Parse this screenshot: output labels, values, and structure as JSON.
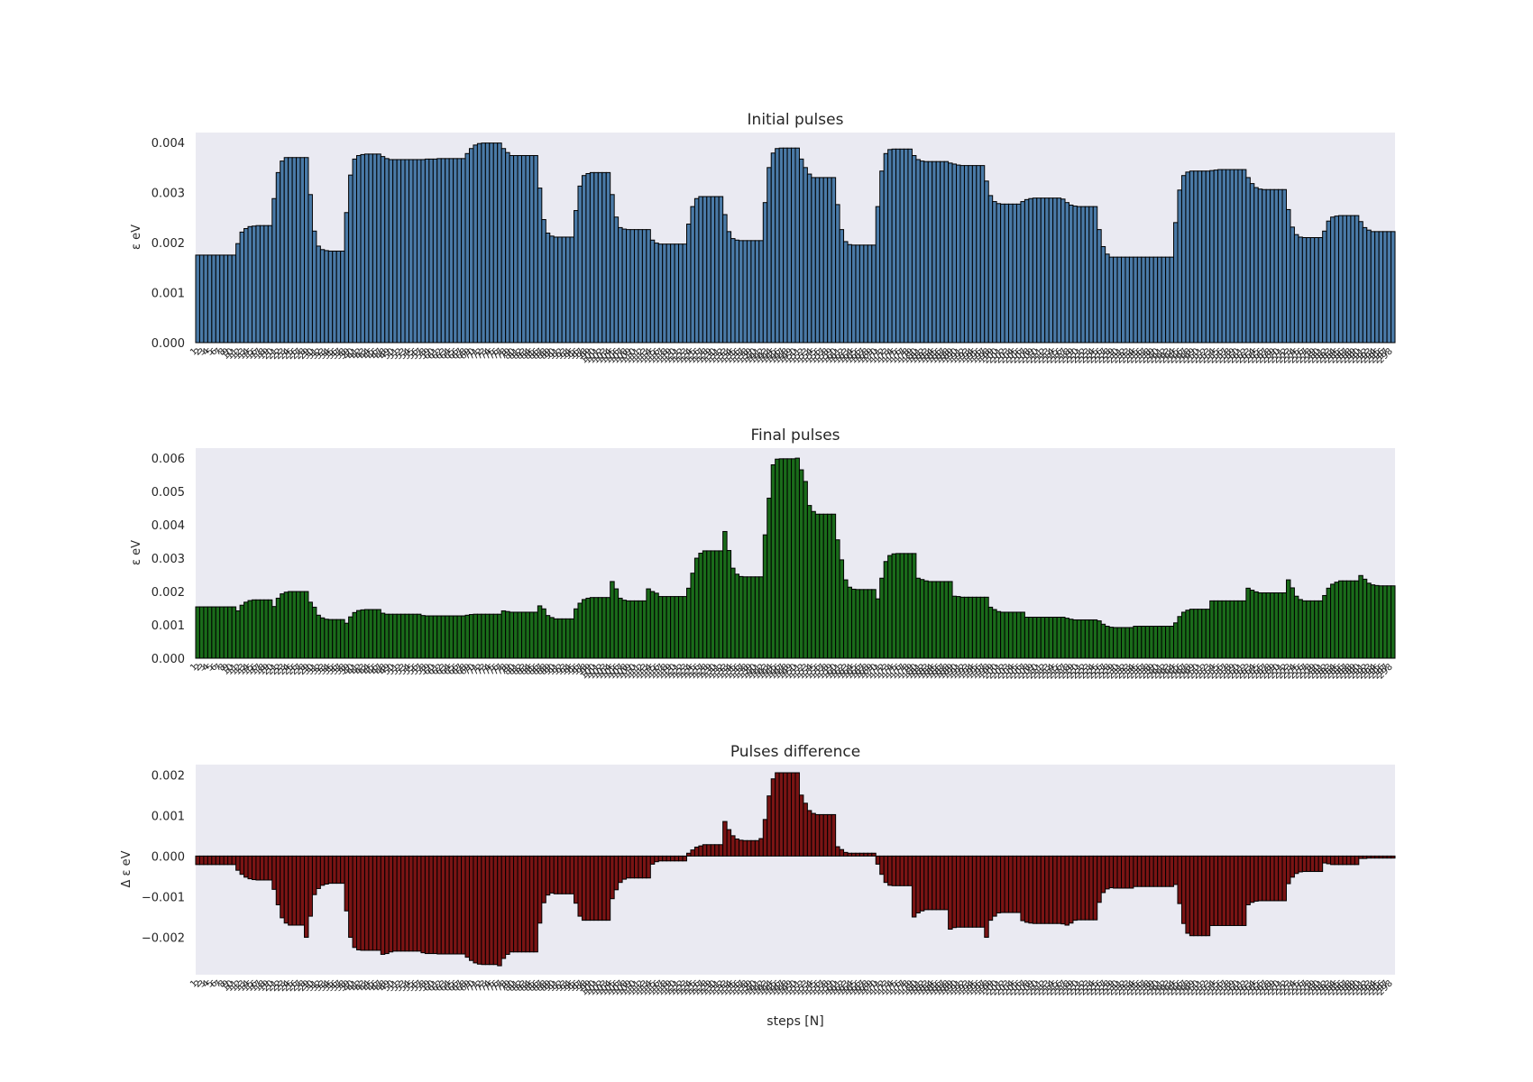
{
  "chart_data": [
    {
      "type": "bar",
      "title": "Initial pulses",
      "ylabel": "ε eV",
      "xlabel": "",
      "color": "#4a7aa7",
      "ylim": [
        0,
        0.0042
      ],
      "yticks": [
        "0.000",
        "0.001",
        "0.002",
        "0.003",
        "0.004"
      ],
      "ytick_values": [
        0,
        0.001,
        0.002,
        0.003,
        0.004
      ],
      "grid": false,
      "x_start": 1,
      "values": [
        0.00175,
        0.00175,
        0.00175,
        0.00175,
        0.00175,
        0.00175,
        0.00175,
        0.00175,
        0.00175,
        0.00175,
        0.00198,
        0.00221,
        0.00228,
        0.00232,
        0.00233,
        0.00234,
        0.00234,
        0.00234,
        0.00234,
        0.00288,
        0.0034,
        0.00363,
        0.0037,
        0.0037,
        0.0037,
        0.0037,
        0.0037,
        0.0037,
        0.00296,
        0.00223,
        0.00193,
        0.00186,
        0.00184,
        0.00183,
        0.00183,
        0.00183,
        0.00183,
        0.0026,
        0.00335,
        0.00367,
        0.00374,
        0.00376,
        0.00377,
        0.00377,
        0.00377,
        0.00377,
        0.00372,
        0.00368,
        0.00366,
        0.00366,
        0.00366,
        0.00366,
        0.00366,
        0.00366,
        0.00366,
        0.00366,
        0.00366,
        0.00367,
        0.00367,
        0.00367,
        0.00368,
        0.00368,
        0.00368,
        0.00368,
        0.00368,
        0.00368,
        0.00368,
        0.00378,
        0.00388,
        0.00395,
        0.00398,
        0.00399,
        0.00399,
        0.00399,
        0.00399,
        0.00399,
        0.00388,
        0.0038,
        0.00374,
        0.00374,
        0.00374,
        0.00374,
        0.00374,
        0.00374,
        0.00374,
        0.00309,
        0.00246,
        0.00219,
        0.00213,
        0.00211,
        0.00211,
        0.00211,
        0.00211,
        0.00211,
        0.00264,
        0.00313,
        0.00334,
        0.00338,
        0.0034,
        0.0034,
        0.0034,
        0.0034,
        0.0034,
        0.00296,
        0.00251,
        0.0023,
        0.00227,
        0.00226,
        0.00226,
        0.00226,
        0.00226,
        0.00226,
        0.00226,
        0.00205,
        0.00199,
        0.00197,
        0.00197,
        0.00197,
        0.00197,
        0.00197,
        0.00197,
        0.00197,
        0.00237,
        0.00272,
        0.00288,
        0.00292,
        0.00292,
        0.00292,
        0.00292,
        0.00292,
        0.00292,
        0.00256,
        0.00222,
        0.00208,
        0.00205,
        0.00204,
        0.00204,
        0.00204,
        0.00204,
        0.00204,
        0.00204,
        0.0028,
        0.0035,
        0.00379,
        0.00388,
        0.00389,
        0.00389,
        0.00389,
        0.00389,
        0.00389,
        0.00367,
        0.0035,
        0.00337,
        0.0033,
        0.0033,
        0.0033,
        0.0033,
        0.0033,
        0.0033,
        0.00276,
        0.00226,
        0.00202,
        0.00196,
        0.00195,
        0.00195,
        0.00195,
        0.00195,
        0.00195,
        0.00195,
        0.00272,
        0.00343,
        0.00378,
        0.00386,
        0.00387,
        0.00387,
        0.00387,
        0.00387,
        0.00387,
        0.00374,
        0.00366,
        0.00363,
        0.00362,
        0.00362,
        0.00362,
        0.00362,
        0.00362,
        0.00362,
        0.00359,
        0.00357,
        0.00355,
        0.00354,
        0.00354,
        0.00354,
        0.00354,
        0.00354,
        0.00354,
        0.00323,
        0.00294,
        0.00282,
        0.00278,
        0.00277,
        0.00277,
        0.00277,
        0.00277,
        0.00277,
        0.00282,
        0.00286,
        0.00288,
        0.00289,
        0.00289,
        0.00289,
        0.00289,
        0.00289,
        0.00289,
        0.00289,
        0.00287,
        0.0028,
        0.00275,
        0.00273,
        0.00272,
        0.00272,
        0.00272,
        0.00272,
        0.00272,
        0.00226,
        0.00192,
        0.00177,
        0.00171,
        0.00171,
        0.00171,
        0.00171,
        0.00171,
        0.00171,
        0.00171,
        0.00171,
        0.00171,
        0.00171,
        0.00171,
        0.00171,
        0.00171,
        0.00171,
        0.00171,
        0.00171,
        0.0024,
        0.00305,
        0.00334,
        0.00341,
        0.00343,
        0.00343,
        0.00343,
        0.00343,
        0.00343,
        0.00344,
        0.00345,
        0.00346,
        0.00346,
        0.00346,
        0.00346,
        0.00346,
        0.00346,
        0.00346,
        0.0033,
        0.00318,
        0.0031,
        0.00307,
        0.00306,
        0.00306,
        0.00306,
        0.00306,
        0.00306,
        0.00306,
        0.00266,
        0.00231,
        0.00216,
        0.00211,
        0.0021,
        0.0021,
        0.0021,
        0.0021,
        0.0021,
        0.00223,
        0.00243,
        0.00251,
        0.00253,
        0.00254,
        0.00254,
        0.00254,
        0.00254,
        0.00254,
        0.00242,
        0.0023,
        0.00225,
        0.00222,
        0.00222,
        0.00222,
        0.00222,
        0.00222,
        0.00222
      ]
    },
    {
      "type": "bar",
      "title": "Final pulses",
      "ylabel": "ε eV",
      "xlabel": "",
      "color": "#1a6b1a",
      "ylim": [
        0,
        0.0063
      ],
      "yticks": [
        "0.000",
        "0.001",
        "0.002",
        "0.003",
        "0.004",
        "0.005",
        "0.006"
      ],
      "ytick_values": [
        0,
        0.001,
        0.002,
        0.003,
        0.004,
        0.005,
        0.006
      ],
      "grid": false,
      "x_start": 1,
      "values": [
        0.00154,
        0.00154,
        0.00154,
        0.00154,
        0.00154,
        0.00154,
        0.00154,
        0.00154,
        0.00154,
        0.00154,
        0.00142,
        0.00159,
        0.00168,
        0.00173,
        0.00175,
        0.00175,
        0.00175,
        0.00175,
        0.00175,
        0.00155,
        0.0018,
        0.00193,
        0.00198,
        0.002,
        0.002,
        0.002,
        0.002,
        0.002,
        0.00168,
        0.00153,
        0.00129,
        0.00121,
        0.00117,
        0.00116,
        0.00116,
        0.00116,
        0.00116,
        0.00105,
        0.00124,
        0.00137,
        0.00143,
        0.00145,
        0.00146,
        0.00146,
        0.00146,
        0.00146,
        0.00135,
        0.00132,
        0.00132,
        0.00132,
        0.00132,
        0.00132,
        0.00132,
        0.00132,
        0.00132,
        0.00132,
        0.00128,
        0.00127,
        0.00127,
        0.00127,
        0.00127,
        0.00127,
        0.00127,
        0.00127,
        0.00127,
        0.00127,
        0.00127,
        0.00129,
        0.00131,
        0.00132,
        0.00132,
        0.00132,
        0.00132,
        0.00132,
        0.00132,
        0.00132,
        0.00142,
        0.0014,
        0.00138,
        0.00138,
        0.00138,
        0.00138,
        0.00138,
        0.00138,
        0.00138,
        0.00157,
        0.00148,
        0.00128,
        0.00122,
        0.00118,
        0.00118,
        0.00118,
        0.00118,
        0.00118,
        0.00148,
        0.00165,
        0.00176,
        0.0018,
        0.00182,
        0.00182,
        0.00182,
        0.00182,
        0.00182,
        0.0023,
        0.00208,
        0.0018,
        0.00174,
        0.00172,
        0.00172,
        0.00172,
        0.00172,
        0.00172,
        0.00208,
        0.002,
        0.00195,
        0.00185,
        0.00185,
        0.00185,
        0.00185,
        0.00185,
        0.00185,
        0.00185,
        0.0021,
        0.00255,
        0.003,
        0.00315,
        0.00322,
        0.00322,
        0.00322,
        0.00322,
        0.00322,
        0.0038,
        0.00323,
        0.0027,
        0.00252,
        0.00245,
        0.00244,
        0.00244,
        0.00244,
        0.00244,
        0.00244,
        0.0037,
        0.0048,
        0.0058,
        0.00597,
        0.00598,
        0.00598,
        0.00598,
        0.00598,
        0.006,
        0.00565,
        0.0053,
        0.00458,
        0.0044,
        0.00432,
        0.00432,
        0.00432,
        0.00432,
        0.00432,
        0.00355,
        0.00295,
        0.00235,
        0.00213,
        0.00207,
        0.00206,
        0.00206,
        0.00206,
        0.00206,
        0.00206,
        0.00178,
        0.0024,
        0.0029,
        0.00308,
        0.00313,
        0.00314,
        0.00314,
        0.00314,
        0.00314,
        0.00314,
        0.0024,
        0.00236,
        0.00232,
        0.0023,
        0.0023,
        0.0023,
        0.0023,
        0.0023,
        0.0023,
        0.00186,
        0.00185,
        0.00183,
        0.00183,
        0.00183,
        0.00183,
        0.00183,
        0.00183,
        0.00183,
        0.00153,
        0.00146,
        0.0014,
        0.00138,
        0.00138,
        0.00138,
        0.00138,
        0.00138,
        0.00138,
        0.00123,
        0.00123,
        0.00123,
        0.00123,
        0.00123,
        0.00123,
        0.00123,
        0.00123,
        0.00123,
        0.00123,
        0.0012,
        0.00117,
        0.00115,
        0.00115,
        0.00115,
        0.00115,
        0.00115,
        0.00115,
        0.00112,
        0.00102,
        0.00096,
        0.00093,
        0.00092,
        0.00092,
        0.00092,
        0.00092,
        0.00092,
        0.00096,
        0.00096,
        0.00096,
        0.00096,
        0.00096,
        0.00096,
        0.00096,
        0.00096,
        0.00096,
        0.00096,
        0.00106,
        0.00125,
        0.00138,
        0.00144,
        0.00147,
        0.00147,
        0.00147,
        0.00147,
        0.00147,
        0.00172,
        0.00172,
        0.00172,
        0.00172,
        0.00172,
        0.00172,
        0.00172,
        0.00172,
        0.00172,
        0.0021,
        0.00204,
        0.00199,
        0.00196,
        0.00196,
        0.00196,
        0.00196,
        0.00196,
        0.00196,
        0.00196,
        0.00235,
        0.00211,
        0.00186,
        0.00176,
        0.00172,
        0.00172,
        0.00172,
        0.00172,
        0.00172,
        0.00188,
        0.0021,
        0.00222,
        0.00228,
        0.00232,
        0.00232,
        0.00232,
        0.00232,
        0.00232,
        0.00248,
        0.00237,
        0.00225,
        0.0022,
        0.00218,
        0.00217,
        0.00217,
        0.00217,
        0.00217
      ]
    },
    {
      "type": "bar",
      "title": "Pulses difference",
      "ylabel": "Δ ε eV",
      "xlabel": "steps [N]",
      "color": "#7a1414",
      "ylim": [
        -0.00292,
        0.00225
      ],
      "yticks": [
        "−0.002",
        "−0.001",
        "0.000",
        "0.001",
        "0.002"
      ],
      "ytick_values": [
        -0.002,
        -0.001,
        0,
        0.001,
        0.002
      ],
      "grid": false,
      "x_start": 1,
      "values": [
        -0.00021,
        -0.00021,
        -0.00021,
        -0.00021,
        -0.00021,
        -0.00021,
        -0.00021,
        -0.00021,
        -0.00021,
        -0.00021,
        -0.00035,
        -0.00045,
        -0.00052,
        -0.00056,
        -0.00058,
        -0.00059,
        -0.00059,
        -0.00059,
        -0.00059,
        -0.00082,
        -0.0012,
        -0.00152,
        -0.00165,
        -0.0017,
        -0.0017,
        -0.0017,
        -0.0017,
        -0.002,
        -0.00148,
        -0.00095,
        -0.0008,
        -0.00072,
        -0.00069,
        -0.00067,
        -0.00067,
        -0.00067,
        -0.00067,
        -0.00135,
        -0.002,
        -0.00225,
        -0.00231,
        -0.00232,
        -0.00232,
        -0.00232,
        -0.00232,
        -0.00232,
        -0.00242,
        -0.0024,
        -0.00236,
        -0.00234,
        -0.00234,
        -0.00234,
        -0.00234,
        -0.00234,
        -0.00234,
        -0.00234,
        -0.00238,
        -0.0024,
        -0.0024,
        -0.0024,
        -0.00241,
        -0.00241,
        -0.00241,
        -0.00241,
        -0.00241,
        -0.00241,
        -0.00241,
        -0.00249,
        -0.00257,
        -0.00263,
        -0.00266,
        -0.00267,
        -0.00267,
        -0.00267,
        -0.00267,
        -0.0027,
        -0.00252,
        -0.00242,
        -0.00236,
        -0.00236,
        -0.00236,
        -0.00236,
        -0.00236,
        -0.00236,
        -0.00236,
        -0.00165,
        -0.00115,
        -0.00096,
        -0.00091,
        -0.00093,
        -0.00093,
        -0.00093,
        -0.00093,
        -0.00093,
        -0.00116,
        -0.00148,
        -0.00158,
        -0.00158,
        -0.00158,
        -0.00158,
        -0.00158,
        -0.00158,
        -0.00158,
        -0.00105,
        -0.00083,
        -0.00065,
        -0.00057,
        -0.00054,
        -0.00054,
        -0.00054,
        -0.00054,
        -0.00054,
        -0.00054,
        -0.0002,
        -0.00014,
        -0.00012,
        -0.00012,
        -0.00012,
        -0.00012,
        -0.00012,
        -0.00012,
        -0.00012,
        7e-05,
        0.00015,
        0.00022,
        0.00025,
        0.00028,
        0.00028,
        0.00028,
        0.00028,
        0.00028,
        0.00085,
        0.00065,
        0.0005,
        0.00042,
        0.00039,
        0.00038,
        0.00038,
        0.00038,
        0.00038,
        0.00043,
        0.0009,
        0.00148,
        0.0019,
        0.00205,
        0.00205,
        0.00205,
        0.00205,
        0.00205,
        0.00205,
        0.0015,
        0.0013,
        0.00112,
        0.00105,
        0.00102,
        0.00102,
        0.00102,
        0.00102,
        0.00102,
        0.00023,
        0.00016,
        9e-05,
        7e-05,
        7e-05,
        7e-05,
        7e-05,
        7e-05,
        7e-05,
        7e-05,
        -0.0002,
        -0.00045,
        -0.00065,
        -0.00072,
        -0.00073,
        -0.00073,
        -0.00073,
        -0.00073,
        -0.00073,
        -0.0015,
        -0.0014,
        -0.00135,
        -0.00132,
        -0.00132,
        -0.00132,
        -0.00132,
        -0.00132,
        -0.00132,
        -0.0018,
        -0.00176,
        -0.00175,
        -0.00175,
        -0.00175,
        -0.00175,
        -0.00175,
        -0.00175,
        -0.00175,
        -0.002,
        -0.00158,
        -0.00148,
        -0.0014,
        -0.00139,
        -0.00139,
        -0.00139,
        -0.00139,
        -0.00139,
        -0.00159,
        -0.00163,
        -0.00165,
        -0.00166,
        -0.00166,
        -0.00166,
        -0.00166,
        -0.00166,
        -0.00166,
        -0.00166,
        -0.00167,
        -0.0017,
        -0.00165,
        -0.00158,
        -0.00157,
        -0.00157,
        -0.00157,
        -0.00157,
        -0.00157,
        -0.00114,
        -0.0009,
        -0.00081,
        -0.00078,
        -0.00079,
        -0.00079,
        -0.00079,
        -0.00079,
        -0.00079,
        -0.00075,
        -0.00075,
        -0.00075,
        -0.00075,
        -0.00075,
        -0.00075,
        -0.00075,
        -0.00075,
        -0.00075,
        -0.00075,
        -0.0007,
        -0.00117,
        -0.00166,
        -0.0019,
        -0.00196,
        -0.00196,
        -0.00196,
        -0.00196,
        -0.00196,
        -0.00171,
        -0.00171,
        -0.00171,
        -0.00171,
        -0.00171,
        -0.00171,
        -0.00171,
        -0.00171,
        -0.00171,
        -0.0012,
        -0.00114,
        -0.00111,
        -0.0011,
        -0.0011,
        -0.0011,
        -0.0011,
        -0.0011,
        -0.0011,
        -0.0011,
        -0.00068,
        -0.00052,
        -0.00043,
        -0.00039,
        -0.00038,
        -0.00038,
        -0.00038,
        -0.00038,
        -0.00038,
        -0.00017,
        -0.00019,
        -0.00021,
        -0.00021,
        -0.00021,
        -0.00021,
        -0.00021,
        -0.00021,
        -0.00021,
        -6e-05,
        -6e-05,
        -5e-05,
        -5e-05,
        -5e-05,
        -5e-05,
        -5e-05,
        -5e-05,
        -5e-05
      ]
    }
  ]
}
